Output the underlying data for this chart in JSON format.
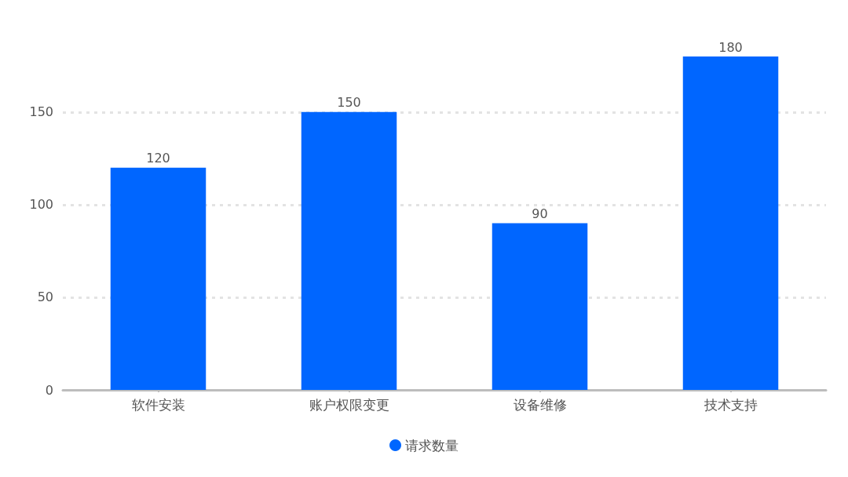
{
  "chart_data": {
    "type": "bar",
    "categories": [
      "软件安装",
      "账户权限变更",
      "设备维修",
      "技术支持"
    ],
    "series": [
      {
        "name": "请求数量",
        "color": "#0066ff",
        "values": [
          120,
          150,
          90,
          180
        ]
      }
    ],
    "ylim": [
      0,
      180
    ],
    "yticks": [
      0,
      50,
      100,
      150
    ],
    "grid": "y",
    "legend": "bottom",
    "data_labels": true
  }
}
